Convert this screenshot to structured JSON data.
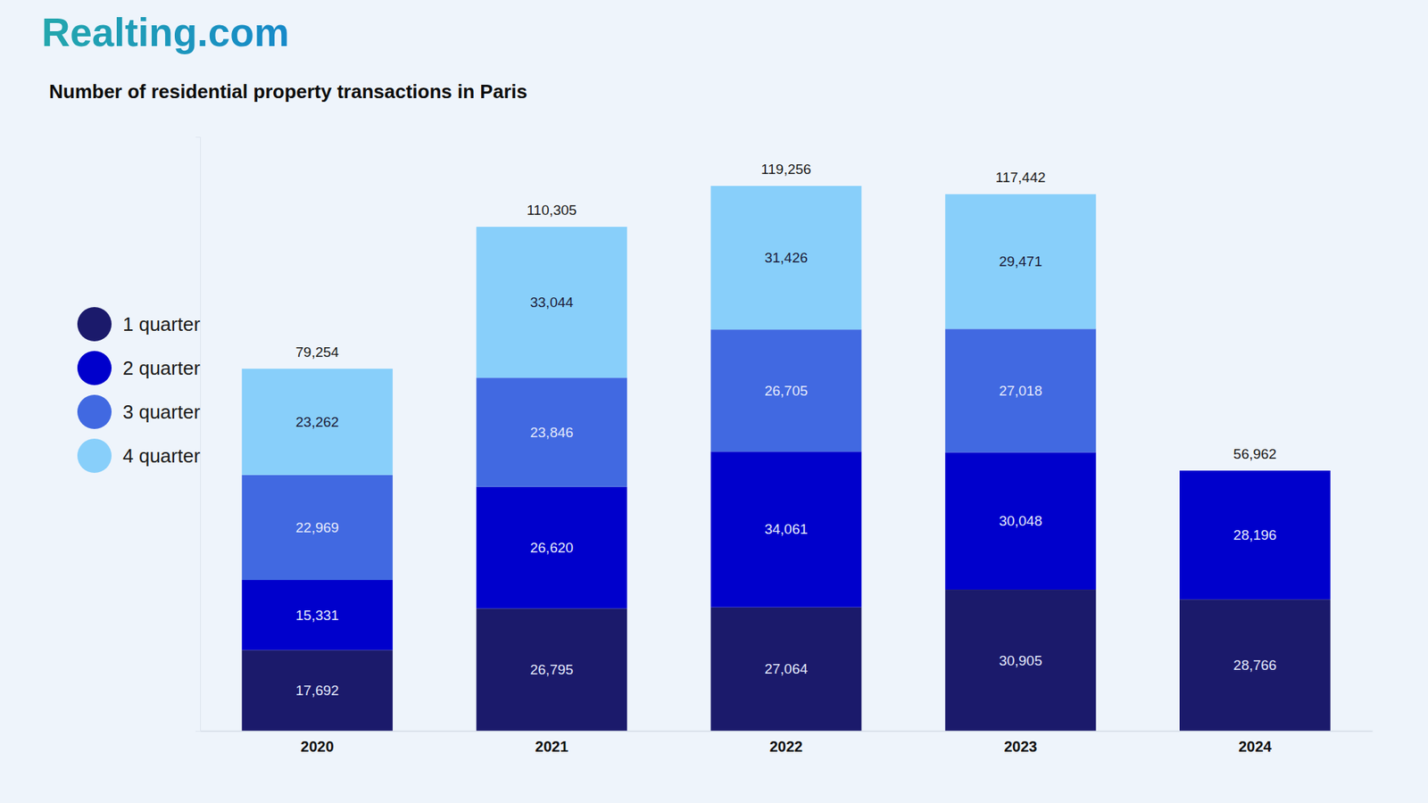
{
  "logo": "Realting.com",
  "chart_data": {
    "type": "bar",
    "title": "Number of residential property transactions in Paris",
    "categories": [
      "2020",
      "2021",
      "2022",
      "2023",
      "2024"
    ],
    "series": [
      {
        "name": "1 quarter",
        "color": "#1b1a6b",
        "values": [
          17692,
          26795,
          27064,
          30905,
          28766
        ],
        "value_labels": [
          "17,692",
          "26,795",
          "27,064",
          "30,905",
          "28,766"
        ]
      },
      {
        "name": "2 quarter",
        "color": "#0000cc",
        "values": [
          15331,
          26620,
          34061,
          30048,
          28196
        ],
        "value_labels": [
          "15,331",
          "26,620",
          "34,061",
          "30,048",
          "28,196"
        ]
      },
      {
        "name": "3 quarter",
        "color": "#4169e1",
        "values": [
          22969,
          23846,
          26705,
          27018,
          null
        ],
        "value_labels": [
          "22,969",
          "23,846",
          "26,705",
          "27,018",
          null
        ]
      },
      {
        "name": "4 quarter",
        "color": "#88cffa",
        "values": [
          23262,
          33044,
          31426,
          29471,
          null
        ],
        "value_labels": [
          "23,262",
          "33,044",
          "31,426",
          "29,471",
          null
        ]
      }
    ],
    "totals": [
      79254,
      110305,
      119256,
      117442,
      56962
    ],
    "total_labels": [
      "79,254",
      "110,305",
      "119,256",
      "117,442",
      "56,962"
    ],
    "stacked": true,
    "data_labels": true,
    "legend": "left",
    "tick_labels": "x",
    "grid": false,
    "ylim": [
      0,
      130000
    ],
    "yticks": []
  }
}
